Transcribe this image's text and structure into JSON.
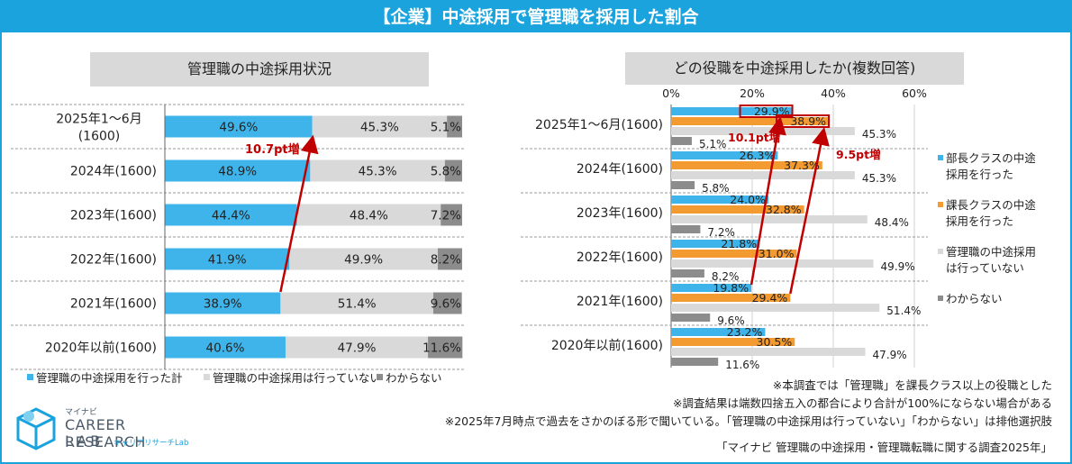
{
  "page_title": "【企業】中途採用で管理職を採用した割合",
  "colors": {
    "accent": "#1aa3dc",
    "bar_blue": "#3fb4ea",
    "bar_orange": "#f39a31",
    "bar_light": "#d9d9d9",
    "bar_dark": "#8c8c8c",
    "highlight_red": "#c00000"
  },
  "chart_data": [
    {
      "type": "bar",
      "orientation": "horizontal-stacked",
      "title": "管理職の中途採用状況",
      "categories": [
        "2025年1～6月",
        "2024年(1600)",
        "2023年(1600)",
        "2022年(1600)",
        "2021年(1600)",
        "2020年以前(1600)"
      ],
      "category_sublabels": [
        "(1600)",
        "",
        "",
        "",
        "",
        ""
      ],
      "series": [
        {
          "name": "管理職の中途採用を行った計",
          "values": [
            49.6,
            48.9,
            44.4,
            41.9,
            38.9,
            40.6
          ],
          "labels": [
            "49.6%",
            "48.9%",
            "44.4%",
            "41.9%",
            "38.9%",
            "40.6%"
          ]
        },
        {
          "name": "管理職の中途採用は行っていない",
          "values": [
            45.3,
            45.3,
            48.4,
            49.9,
            51.4,
            47.9
          ],
          "labels": [
            "45.3%",
            "45.3%",
            "48.4%",
            "49.9%",
            "51.4%",
            "47.9%"
          ]
        },
        {
          "name": "わからない",
          "values": [
            5.1,
            5.8,
            7.2,
            8.2,
            9.6,
            11.6
          ],
          "labels": [
            "5.1%",
            "5.8%",
            "7.2%",
            "8.2%",
            "9.6%",
            "11.6%"
          ]
        }
      ],
      "annotation": "10.7pt増"
    },
    {
      "type": "bar",
      "orientation": "horizontal-grouped",
      "title": "どの役職を中途採用したか(複数回答)",
      "categories": [
        "2025年1～6月(1600)",
        "2024年(1600)",
        "2023年(1600)",
        "2022年(1600)",
        "2021年(1600)",
        "2020年以前(1600)"
      ],
      "xlim": [
        0,
        60
      ],
      "x_ticks": [
        "0%",
        "20%",
        "40%",
        "60%"
      ],
      "series": [
        {
          "name": "部長クラスの中途採用を行った",
          "values": [
            29.9,
            26.3,
            24.0,
            21.8,
            19.8,
            23.2
          ],
          "labels": [
            "29.9%",
            "26.3%",
            "24.0%",
            "21.8%",
            "19.8%",
            "23.2%"
          ]
        },
        {
          "name": "課長クラスの中途採用を行った",
          "values": [
            38.9,
            37.3,
            32.8,
            31.0,
            29.4,
            30.5
          ],
          "labels": [
            "38.9%",
            "37.3%",
            "32.8%",
            "31.0%",
            "29.4%",
            "30.5%"
          ]
        },
        {
          "name": "管理職の中途採用は行っていない",
          "values": [
            45.3,
            45.3,
            48.4,
            49.9,
            51.4,
            47.9
          ],
          "labels": [
            "45.3%",
            "45.3%",
            "48.4%",
            "49.9%",
            "51.4%",
            "47.9%"
          ]
        },
        {
          "name": "わからない",
          "values": [
            5.1,
            5.8,
            7.2,
            8.2,
            9.6,
            11.6
          ],
          "labels": [
            "5.1%",
            "5.8%",
            "7.2%",
            "8.2%",
            "9.6%",
            "11.6%"
          ]
        }
      ],
      "legend": [
        "部長クラスの中途",
        "採用を行った",
        "課長クラスの中途",
        "採用を行った",
        "管理職の中途採用",
        "は行っていない",
        "わからない"
      ],
      "annotations": [
        "10.1pt増",
        "9.5pt増"
      ]
    }
  ],
  "notes": [
    "※本調査では「管理職」を課長クラス以上の役職とした",
    "※調査結果は端数四捨五入の都合により合計が100%にならない場合がある",
    "※2025年7月時点で過去をさかのぼる形で聞いている。「管理職の中途採用は行っていない」「わからない」は排他選択肢"
  ],
  "source": "「マイナビ 管理職の中途採用・管理職転職に関する調査2025年」",
  "logo": {
    "line1": "マイナビ",
    "line2": "CAREER RESEARCH",
    "line3": "LAB",
    "line4": "キャリアリサーチLab"
  }
}
